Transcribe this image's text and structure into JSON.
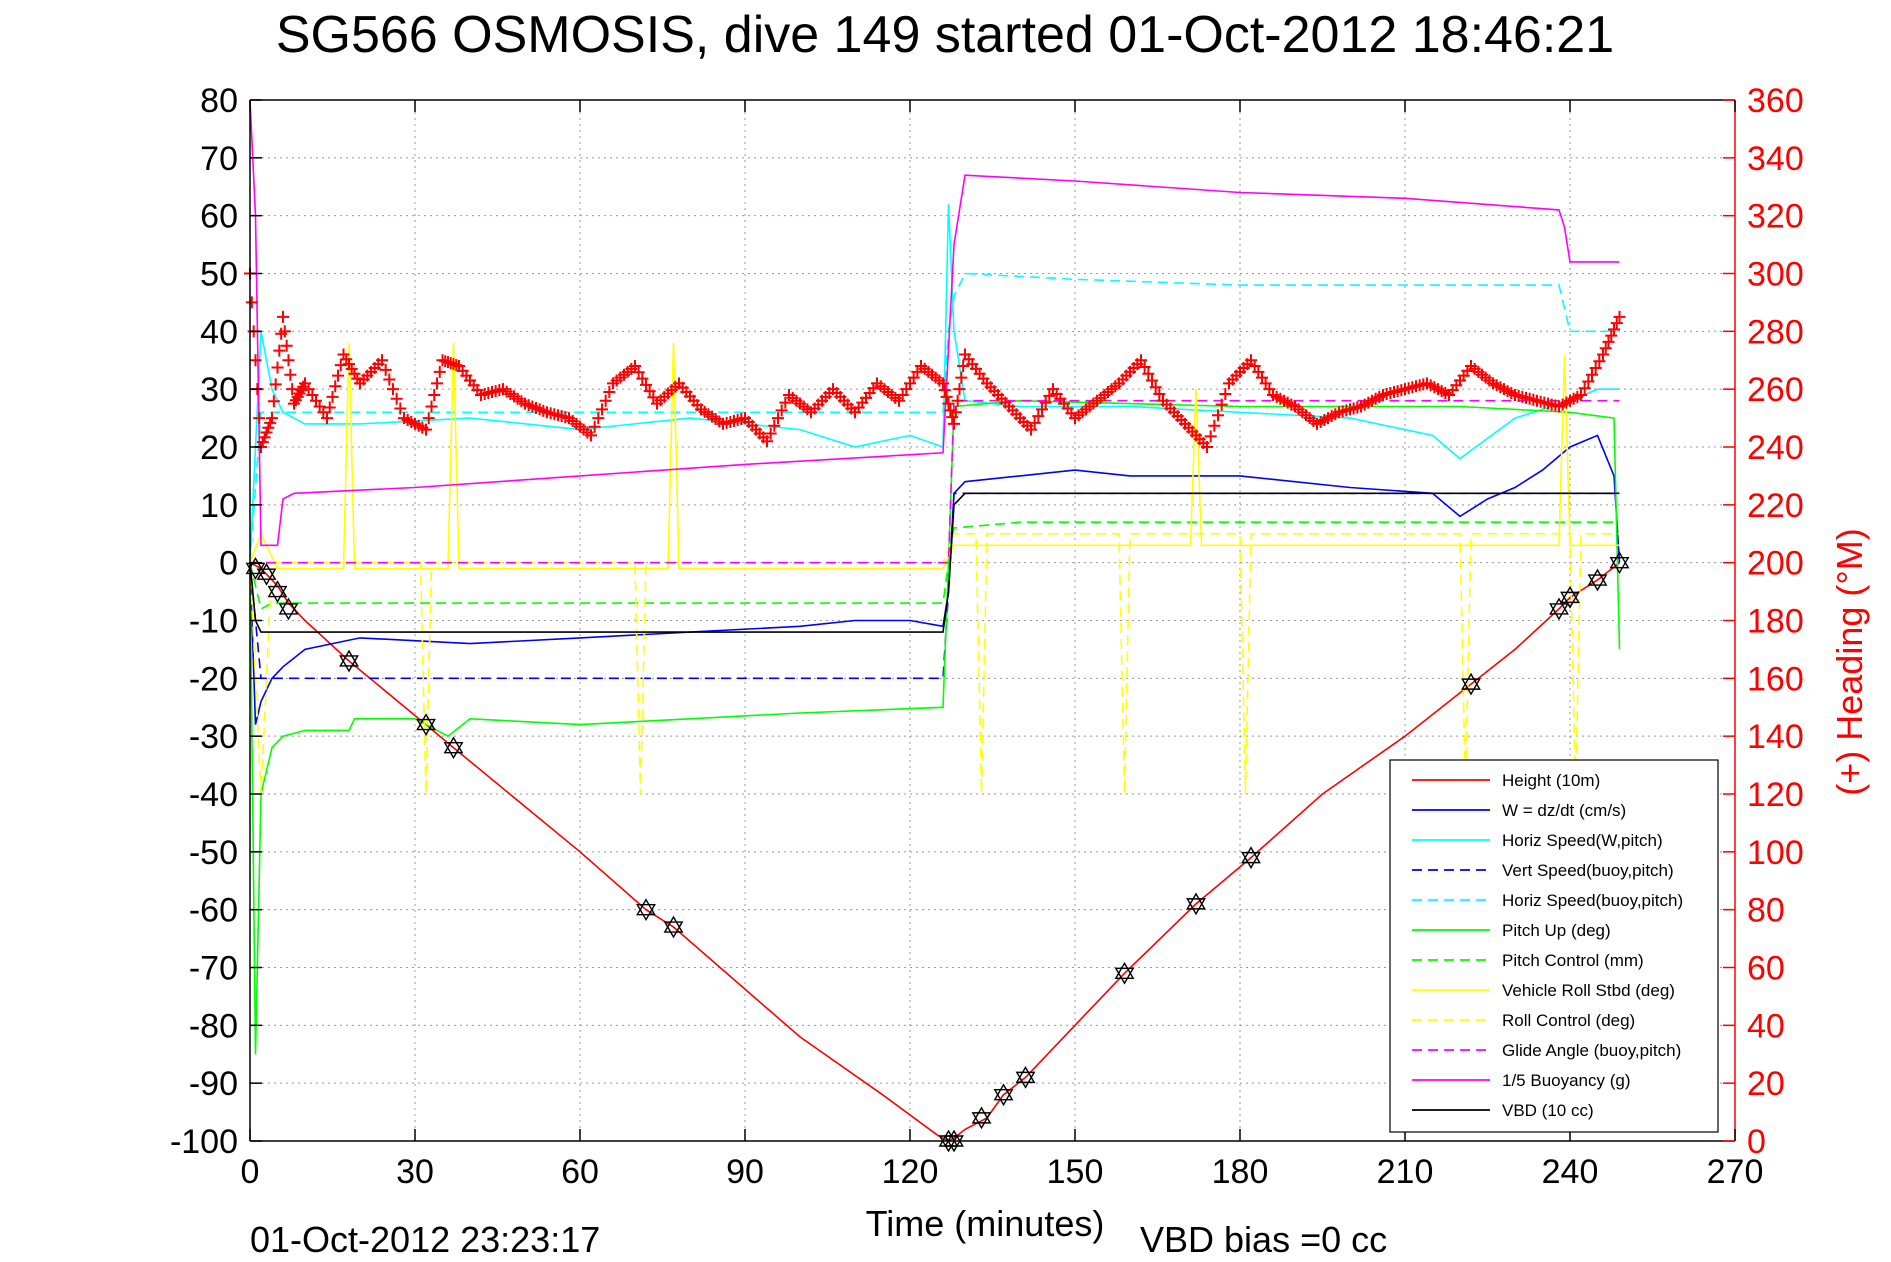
{
  "chart_data": {
    "type": "line",
    "title": "SG566 OSMOSIS, dive 149 started 01-Oct-2012 18:46:21",
    "xlabel": "Time (minutes)",
    "ylabel": "",
    "y2label": "(+) Heading (°M)",
    "xlim": [
      0,
      270
    ],
    "ylim": [
      -100,
      80
    ],
    "y2lim": [
      0,
      360
    ],
    "x_ticks": [
      "0",
      "30",
      "60",
      "90",
      "120",
      "150",
      "180",
      "210",
      "240",
      "270"
    ],
    "y_ticks": [
      "80",
      "70",
      "60",
      "50",
      "40",
      "30",
      "20",
      "10",
      "0",
      "-10",
      "-20",
      "-30",
      "-40",
      "-50",
      "-60",
      "-70",
      "-80",
      "-90",
      "-100"
    ],
    "y2_ticks": [
      "360",
      "340",
      "320",
      "300",
      "280",
      "260",
      "240",
      "220",
      "200",
      "180",
      "160",
      "140",
      "120",
      "100",
      "80",
      "60",
      "40",
      "20",
      "0"
    ],
    "grid": true,
    "legend_position": "lower-right",
    "footer_left": "01-Oct-2012 23:23:17",
    "footer_right": "VBD bias =0 cc",
    "colors": {
      "red": "#ff0000",
      "blue": "#0000ff",
      "cyan": "#00ffff",
      "green": "#00ff00",
      "yellow": "#ffff00",
      "magenta": "#ff00ff",
      "black": "#000000"
    },
    "series": [
      {
        "name": "Height (10m)",
        "color": "#ff0000",
        "style": "solid",
        "x": [
          0,
          2,
          5,
          7,
          10,
          18,
          32,
          37,
          60,
          72,
          77,
          100,
          115,
          125,
          127,
          128,
          130,
          134,
          137,
          141,
          150,
          159,
          172,
          182,
          195,
          210,
          222,
          230,
          238,
          240,
          245,
          249
        ],
        "y": [
          0,
          -1,
          -4,
          -7,
          -10,
          -17,
          -28,
          -32,
          -50,
          -60,
          -63,
          -82,
          -92,
          -99,
          -100,
          -99.5,
          -98,
          -96,
          -92,
          -89,
          -80,
          -71,
          -59,
          -51,
          -40,
          -30,
          -21,
          -15,
          -8,
          -6,
          -3,
          0
        ]
      },
      {
        "name": "W = dz/dt (cm/s)",
        "color": "#0000ff",
        "style": "solid",
        "x": [
          0,
          1,
          2,
          4,
          6,
          10,
          20,
          40,
          60,
          80,
          100,
          110,
          120,
          126,
          127,
          128,
          130,
          140,
          150,
          160,
          180,
          200,
          215,
          220,
          225,
          230,
          235,
          240,
          245,
          248,
          249
        ],
        "y": [
          0,
          -28,
          -24,
          -20,
          -18,
          -15,
          -13,
          -14,
          -13,
          -12,
          -11,
          -10,
          -10,
          -11,
          -5,
          12,
          14,
          15,
          16,
          15,
          15,
          13,
          12,
          8,
          11,
          13,
          16,
          20,
          22,
          15,
          0
        ]
      },
      {
        "name": "Horiz Speed(W,pitch)",
        "color": "#00ffff",
        "style": "solid",
        "x": [
          0,
          2,
          4,
          6,
          10,
          20,
          40,
          60,
          80,
          100,
          110,
          120,
          126,
          127,
          128,
          130,
          140,
          160,
          180,
          200,
          215,
          220,
          230,
          240,
          245,
          249
        ],
        "y": [
          0,
          40,
          30,
          26,
          24,
          24,
          25,
          23,
          25,
          23,
          20,
          22,
          20,
          62,
          40,
          28,
          27,
          27,
          26,
          25,
          22,
          18,
          25,
          28,
          30,
          30
        ]
      },
      {
        "name": "Vert Speed(buoy,pitch)",
        "color": "#0000ff",
        "style": "dashed",
        "x": [
          0,
          2,
          5,
          20,
          60,
          100,
          126,
          127,
          128,
          140,
          200,
          240,
          249
        ],
        "y": [
          0,
          -20,
          -20,
          -20,
          -20,
          -20,
          -20,
          -5,
          12,
          12,
          12,
          12,
          12
        ]
      },
      {
        "name": "Horiz Speed(buoy,pitch)",
        "color": "#00ffff",
        "style": "dashed",
        "x": [
          0,
          2,
          5,
          20,
          60,
          100,
          126,
          127,
          128,
          130,
          150,
          180,
          210,
          238,
          240,
          249
        ],
        "y": [
          0,
          26,
          26,
          26,
          26,
          26,
          26,
          40,
          46,
          50,
          49,
          48,
          48,
          48,
          40,
          40
        ]
      },
      {
        "name": "Pitch Up (deg)",
        "color": "#00ff00",
        "style": "solid",
        "x": [
          0,
          1,
          2,
          4,
          6,
          10,
          18,
          19,
          30,
          36,
          40,
          60,
          80,
          100,
          126,
          127,
          128,
          140,
          180,
          220,
          240,
          248,
          249
        ],
        "y": [
          0,
          -85,
          -40,
          -32,
          -30,
          -29,
          -29,
          -27,
          -27,
          -30,
          -27,
          -28,
          -27,
          -26,
          -25,
          0,
          27,
          28,
          27,
          27,
          26,
          25,
          -15
        ]
      },
      {
        "name": "Pitch Control (mm)",
        "color": "#00ff00",
        "style": "dashed",
        "x": [
          0,
          2,
          4,
          10,
          40,
          80,
          126,
          127,
          128,
          140,
          200,
          240,
          249
        ],
        "y": [
          0,
          -8,
          -7,
          -7,
          -7,
          -7,
          -7,
          0,
          6,
          7,
          7,
          7,
          7
        ]
      },
      {
        "name": "Vehicle Roll Stbd (deg)",
        "color": "#ffff00",
        "style": "solid",
        "x": [
          0,
          2,
          5,
          17,
          18,
          19,
          36,
          37,
          38,
          76,
          77,
          78,
          126,
          128,
          130,
          150,
          171,
          172,
          173,
          200,
          238,
          239,
          240,
          248,
          249
        ],
        "y": [
          0,
          5,
          -1,
          -1,
          38,
          -1,
          -1,
          38,
          -1,
          -1,
          38,
          -1,
          -1,
          3,
          3,
          3,
          3,
          30,
          3,
          3,
          3,
          36,
          3,
          3,
          3
        ]
      },
      {
        "name": "Roll Control (deg)",
        "color": "#ffff00",
        "style": "dashed",
        "x": [
          0,
          2,
          4,
          31,
          32,
          33,
          70,
          71,
          72,
          126,
          128,
          132,
          133,
          134,
          158,
          159,
          160,
          180,
          181,
          182,
          220,
          221,
          222,
          240,
          241,
          242,
          249
        ],
        "y": [
          0,
          -40,
          0,
          0,
          -40,
          0,
          0,
          -40,
          0,
          0,
          5,
          5,
          -40,
          5,
          5,
          -40,
          5,
          5,
          -40,
          5,
          5,
          -40,
          5,
          5,
          -40,
          5,
          5
        ]
      },
      {
        "name": "Glide Angle (buoy,pitch)",
        "color": "#ff00ff",
        "style": "dashed",
        "x": [
          0,
          2,
          10,
          60,
          126,
          127,
          128,
          140,
          200,
          240,
          249
        ],
        "y": [
          0,
          0,
          0,
          0,
          0,
          0,
          28,
          28,
          28,
          28,
          28
        ]
      },
      {
        "name": "1/5 Buoyancy (g)",
        "color": "#ff00ff",
        "style": "solid",
        "x": [
          0,
          1,
          2,
          5,
          6,
          8,
          30,
          60,
          90,
          126,
          128,
          130,
          150,
          180,
          210,
          238,
          239,
          240,
          245,
          249
        ],
        "y": [
          80,
          60,
          3,
          3,
          11,
          12,
          13,
          15,
          17,
          19,
          55,
          67,
          66,
          64,
          63,
          61,
          58,
          52,
          52,
          52
        ]
      },
      {
        "name": "VBD (10 cc)",
        "color": "#000000",
        "style": "solid",
        "x": [
          0,
          1,
          2,
          10,
          60,
          126,
          127,
          128,
          130,
          180,
          240,
          249
        ],
        "y": [
          0,
          -10,
          -12,
          -12,
          -12,
          -12,
          -5,
          10,
          12,
          12,
          12,
          12
        ]
      }
    ],
    "heading_series": {
      "name": "(+) Heading (°M)",
      "color": "#ff0000",
      "marker": "+",
      "x": [
        0,
        2,
        4,
        6,
        8,
        10,
        14,
        17,
        20,
        24,
        28,
        32,
        35,
        38,
        42,
        46,
        50,
        54,
        58,
        62,
        66,
        70,
        74,
        78,
        82,
        86,
        90,
        94,
        98,
        102,
        106,
        110,
        114,
        118,
        122,
        126,
        128,
        130,
        134,
        138,
        142,
        146,
        150,
        154,
        158,
        162,
        166,
        170,
        174,
        178,
        182,
        186,
        190,
        194,
        198,
        202,
        206,
        210,
        214,
        218,
        222,
        226,
        230,
        234,
        238,
        242,
        246,
        249
      ],
      "y": [
        300,
        240,
        250,
        285,
        255,
        262,
        250,
        272,
        262,
        270,
        250,
        246,
        270,
        268,
        258,
        260,
        255,
        252,
        250,
        244,
        262,
        268,
        255,
        262,
        253,
        248,
        250,
        242,
        258,
        252,
        260,
        252,
        262,
        256,
        268,
        262,
        248,
        272,
        262,
        254,
        246,
        260,
        250,
        256,
        262,
        270,
        256,
        248,
        240,
        262,
        270,
        258,
        254,
        248,
        252,
        254,
        258,
        260,
        262,
        258,
        268,
        262,
        258,
        256,
        254,
        258,
        272,
        285
      ]
    },
    "depth_markers": {
      "x": [
        1,
        3,
        5,
        7,
        18,
        32,
        37,
        72,
        77,
        127,
        128,
        133,
        137,
        141,
        159,
        172,
        182,
        222,
        238,
        240,
        245,
        249
      ],
      "y": [
        -1,
        -2,
        -5,
        -8,
        -17,
        -28,
        -32,
        -60,
        -63,
        -100,
        -100,
        -96,
        -92,
        -89,
        -71,
        -59,
        -51,
        -21,
        -8,
        -6,
        -3,
        0
      ]
    }
  }
}
